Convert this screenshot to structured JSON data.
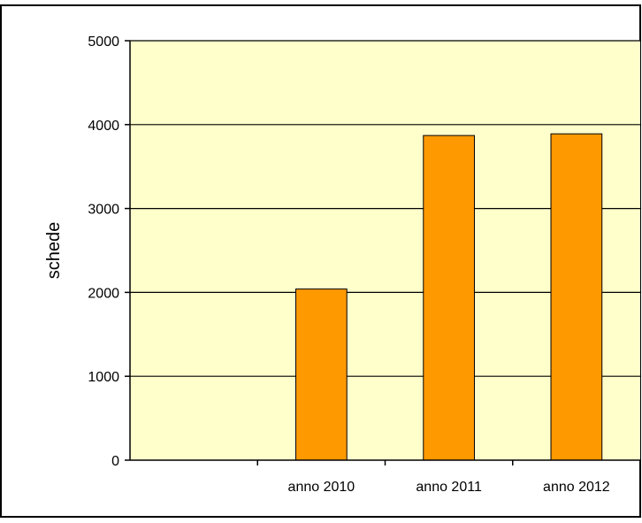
{
  "chart_data": {
    "type": "bar",
    "title": "",
    "xlabel": "",
    "ylabel": "schede",
    "ylim": [
      0,
      5000
    ],
    "yticks": [
      0,
      1000,
      2000,
      3000,
      4000,
      5000
    ],
    "grid": true,
    "legend": "none",
    "categories": [
      "",
      "anno 2010",
      "anno 2011",
      "anno 2012"
    ],
    "values": [
      null,
      2040,
      3870,
      3890
    ],
    "colors": {
      "bar": "#FF9900",
      "plot_background": "#FFFFCC",
      "gridline": "#000000",
      "frame": "#000000"
    }
  }
}
